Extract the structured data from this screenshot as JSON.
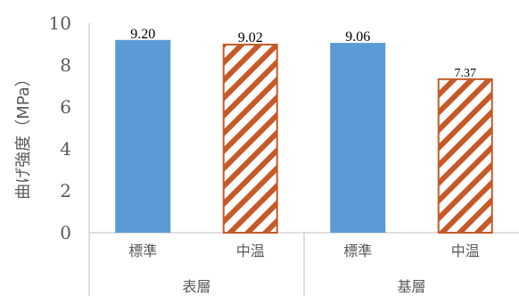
{
  "chart_data": {
    "type": "bar",
    "ylabel": "曲げ強度（MPa）",
    "xlabel": "",
    "ylim": [
      0,
      10
    ],
    "yticks": [
      0,
      2,
      4,
      6,
      8,
      10
    ],
    "ytick_labels": [
      "0",
      "2",
      "4",
      "6",
      "8",
      "10"
    ],
    "groups": [
      {
        "label": "表層",
        "bars": [
          {
            "category": "標準",
            "value": 9.2,
            "value_label": "9.20",
            "style": "solid"
          },
          {
            "category": "中温",
            "value": 9.02,
            "value_label": "9.02",
            "style": "hatched"
          }
        ]
      },
      {
        "label": "基層",
        "bars": [
          {
            "category": "標準",
            "value": 9.06,
            "value_label": "9.06",
            "style": "solid"
          },
          {
            "category": "中温",
            "value": 7.37,
            "value_label": "7.37",
            "style": "hatched"
          }
        ]
      }
    ],
    "colors": {
      "solid": "#5b9bd5",
      "hatch": "#c55a28",
      "axis": "#bfbfbf",
      "text": "#595959"
    },
    "grid": false,
    "legend": "none"
  }
}
